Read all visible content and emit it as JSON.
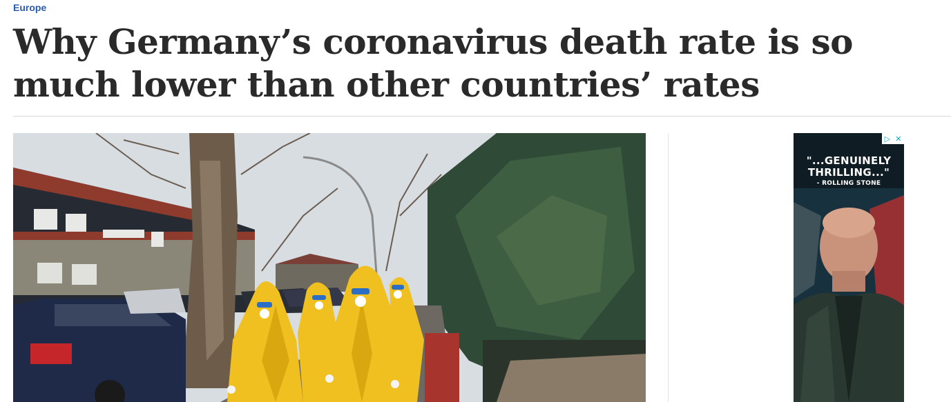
{
  "section": {
    "kicker": "Europe"
  },
  "article": {
    "headline": "Why Germany’s coronavirus death rate is so much lower than other countries’ rates"
  },
  "ad": {
    "quote_line1": "\"...GENUINELY",
    "quote_line2": "THRILLING...\"",
    "source": "- ROLLING STONE",
    "choices_icon": "play-triangle-icon",
    "close_icon": "close-x-icon"
  },
  "colors": {
    "kicker": "#2a5aa8",
    "headline": "#2a2a2a",
    "suit": "#f0c020"
  }
}
